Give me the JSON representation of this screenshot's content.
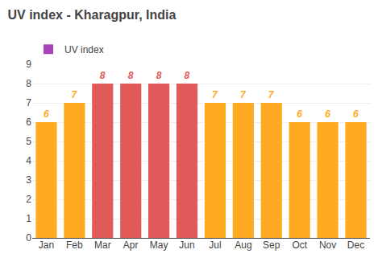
{
  "chart_data": {
    "type": "bar",
    "title": "UV index - Kharagpur, India",
    "categories": [
      "Jan",
      "Feb",
      "Mar",
      "Apr",
      "May",
      "Jun",
      "Jul",
      "Aug",
      "Sep",
      "Oct",
      "Nov",
      "Dec"
    ],
    "series": [
      {
        "name": "UV index",
        "color": "#AA44BB",
        "colors": [
          "#FFAA20",
          "#FFAA20",
          "#E05A5A",
          "#E05A5A",
          "#E05A5A",
          "#E05A5A",
          "#FFAA20",
          "#FFAA20",
          "#FFAA20",
          "#FFAA20",
          "#FFAA20",
          "#FFAA20"
        ],
        "values": [
          6,
          7,
          8,
          8,
          8,
          8,
          7,
          7,
          7,
          6,
          6,
          6
        ]
      }
    ],
    "ylim": [
      0,
      9
    ],
    "yticks": [
      0,
      1,
      2,
      3,
      4,
      5,
      6,
      7,
      8,
      9
    ],
    "grid": true,
    "legend": "upper left",
    "data_labels": true
  }
}
